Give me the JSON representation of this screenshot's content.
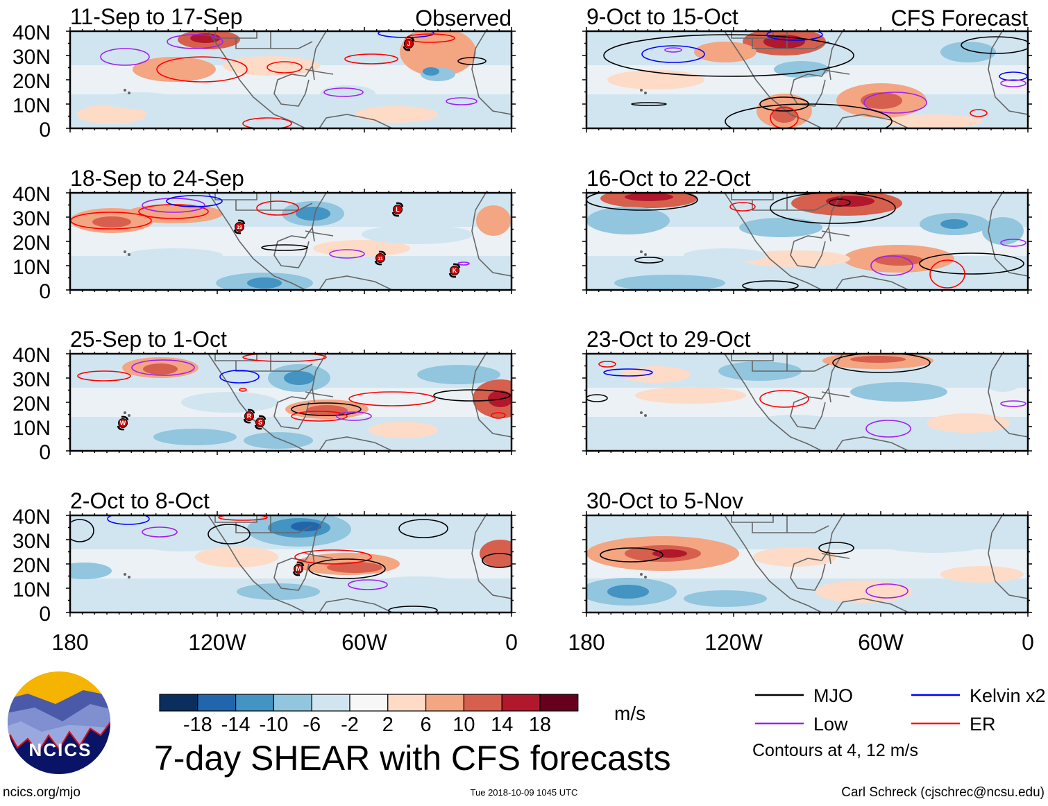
{
  "labels": {
    "observed": "Observed",
    "forecast": "CFS Forecast"
  },
  "lat_ticks": [
    "40N",
    "30N",
    "20N",
    "10N",
    "0"
  ],
  "lon_ticks": [
    "180",
    "120W",
    "60W",
    "0"
  ],
  "panels": [
    {
      "title": "11-Sep to 17-Sep",
      "kind": "observed",
      "storms": [
        "J"
      ]
    },
    {
      "title": "18-Sep to 24-Sep",
      "kind": "observed",
      "storms": [
        "L",
        "19",
        "11",
        "K"
      ]
    },
    {
      "title": "25-Sep to 1-Oct",
      "kind": "observed",
      "storms": [
        "W",
        "R",
        "S"
      ]
    },
    {
      "title": "2-Oct to 8-Oct",
      "kind": "observed",
      "storms": [
        "M"
      ]
    },
    {
      "title": "9-Oct to 15-Oct",
      "kind": "forecast",
      "storms": []
    },
    {
      "title": "16-Oct to 22-Oct",
      "kind": "forecast",
      "storms": []
    },
    {
      "title": "23-Oct to 29-Oct",
      "kind": "forecast",
      "storms": []
    },
    {
      "title": "30-Oct to 5-Nov",
      "kind": "forecast",
      "storms": []
    }
  ],
  "colorbar": {
    "colors": [
      "#0a2f5f",
      "#2166ac",
      "#4393c3",
      "#92c5de",
      "#d1e5f0",
      "#f7f7f7",
      "#fddbc7",
      "#f4a582",
      "#d6604d",
      "#b2182b",
      "#67001f"
    ],
    "ticks": [
      "-18",
      "-14",
      "-10",
      "-6",
      "-2",
      "2",
      "6",
      "10",
      "14",
      "18"
    ],
    "units": "m/s"
  },
  "legend": {
    "items": [
      {
        "label": "MJO",
        "color": "#000000"
      },
      {
        "label": "Kelvin x2",
        "color": "#0000ff"
      },
      {
        "label": "Low",
        "color": "#a020f0"
      },
      {
        "label": "ER",
        "color": "#ff0000"
      }
    ],
    "note": "Contours at 4, 12 m/s"
  },
  "title": "7-day SHEAR with CFS forecasts",
  "logo_text": "NCICS",
  "footer": {
    "left": "ncics.org/mjo",
    "center": "Tue 2018-10-09 1045 UTC",
    "right": "Carl Schreck (cjschrec@ncsu.edu)"
  }
}
